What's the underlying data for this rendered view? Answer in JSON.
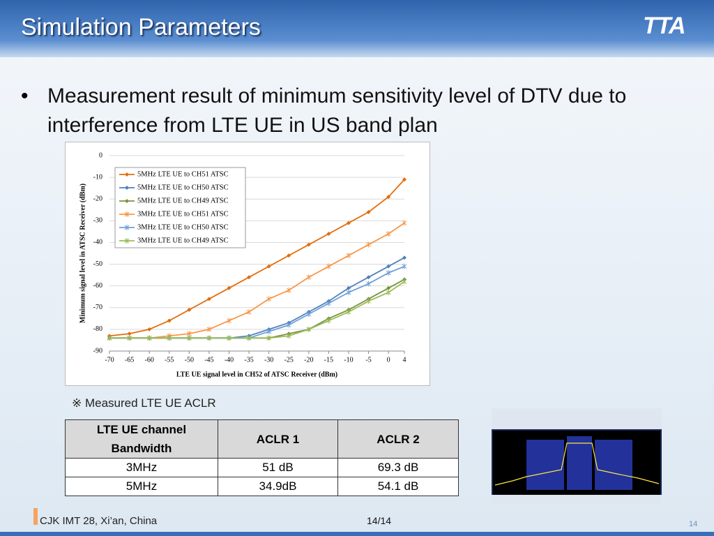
{
  "header": {
    "title": "Simulation Parameters",
    "logo": "TTA"
  },
  "bullet": "Measurement result of minimum sensitivity level of DTV due to interference from LTE UE in US band plan",
  "chart_data": {
    "type": "line",
    "xlabel": "LTE UE signal level in CH52 of ATSC Receiver (dBm)",
    "ylabel": "Minimum  signal level in ATSC Receiver (dBm)",
    "x": [
      -70,
      -65,
      -60,
      -55,
      -50,
      -45,
      -40,
      -35,
      -30,
      -25,
      -20,
      -15,
      -10,
      -5,
      0,
      4
    ],
    "xlim": [
      -70,
      4
    ],
    "xticks": [
      -70,
      -65,
      -60,
      -55,
      -50,
      -45,
      -40,
      -35,
      -30,
      -25,
      -20,
      -15,
      -10,
      -5,
      0,
      4
    ],
    "ylim": [
      -90,
      0
    ],
    "yticks": [
      0,
      -10,
      -20,
      -30,
      -40,
      -50,
      -60,
      -70,
      -80,
      -90
    ],
    "grid": true,
    "legend": "upper left",
    "series": [
      {
        "name": "5MHz LTE UE to CH51 ATSC",
        "color": "#e46c0a",
        "marker": "diamond",
        "values": [
          -83,
          -82,
          -80,
          -76,
          -71,
          -66,
          -61,
          -56,
          -51,
          -46,
          -41,
          -36,
          -31,
          -26,
          -19,
          -11
        ]
      },
      {
        "name": "5MHz LTE UE to CH50 ATSC",
        "color": "#4f81bd",
        "marker": "diamond",
        "values": [
          -84,
          -84,
          -84,
          -84,
          -84,
          -84,
          -84,
          -83,
          -80,
          -77,
          -72,
          -67,
          -61,
          -56,
          -51,
          -47
        ]
      },
      {
        "name": "5MHz LTE UE to CH49 ATSC",
        "color": "#77933c",
        "marker": "diamond",
        "values": [
          -84,
          -84,
          -84,
          -84,
          -84,
          -84,
          -84,
          -84,
          -84,
          -82,
          -80,
          -75,
          -71,
          -66,
          -61,
          -57
        ]
      },
      {
        "name": "3MHz LTE UE to CH51 ATSC",
        "color": "#f79646",
        "marker": "star",
        "values": [
          -84,
          -84,
          -84,
          -83,
          -82,
          -80,
          -76,
          -72,
          -66,
          -62,
          -56,
          -51,
          -46,
          -41,
          -36,
          -31
        ]
      },
      {
        "name": "3MHz LTE UE to CH50 ATSC",
        "color": "#6fa0d8",
        "marker": "star",
        "values": [
          -84,
          -84,
          -84,
          -84,
          -84,
          -84,
          -84,
          -84,
          -81,
          -78,
          -73,
          -68,
          -63,
          -59,
          -54,
          -51
        ]
      },
      {
        "name": "3MHz LTE UE to CH49 ATSC",
        "color": "#9bbb59",
        "marker": "star",
        "values": [
          -84,
          -84,
          -84,
          -84,
          -84,
          -84,
          -84,
          -84,
          -84,
          -83,
          -80,
          -76,
          -72,
          -67,
          -63,
          -58
        ]
      }
    ]
  },
  "note": "※ Measured LTE UE ACLR",
  "table": {
    "header": [
      "LTE UE channel Bandwidth",
      "ACLR 1",
      "ACLR 2"
    ],
    "rows": [
      [
        "3MHz",
        "51 dB",
        "69.3 dB"
      ],
      [
        "5MHz",
        "34.9dB",
        "54.1 dB"
      ]
    ]
  },
  "footer": {
    "left": "CJK IMT 28, Xi’an, China",
    "center": "14/14",
    "page": "14"
  }
}
